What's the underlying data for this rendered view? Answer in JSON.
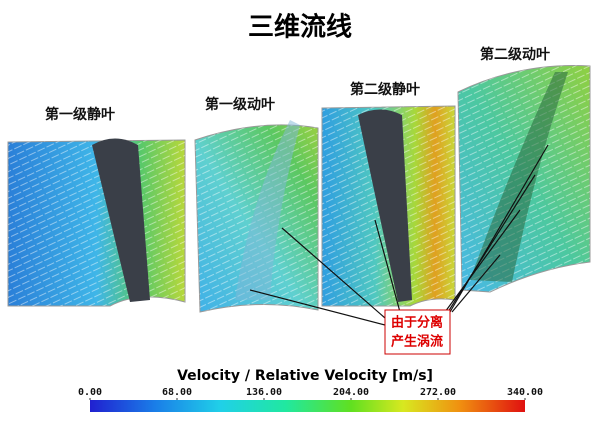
{
  "title": "三维流线",
  "panels": [
    {
      "label": "第一级静叶"
    },
    {
      "label": "第一级动叶"
    },
    {
      "label": "第二级静叶"
    },
    {
      "label": "第二级动叶"
    }
  ],
  "annotation": {
    "lines": [
      "由于分离",
      "产生涡流"
    ]
  },
  "colorbar": {
    "title": "Velocity / Relative Velocity [m/s]",
    "ticks": [
      {
        "value": 0,
        "label": "0.00"
      },
      {
        "value": 68,
        "label": "68.00"
      },
      {
        "value": 136,
        "label": "136.00"
      },
      {
        "value": 204,
        "label": "204.00"
      },
      {
        "value": 272,
        "label": "272.00"
      },
      {
        "value": 340,
        "label": "340.00"
      }
    ]
  }
}
